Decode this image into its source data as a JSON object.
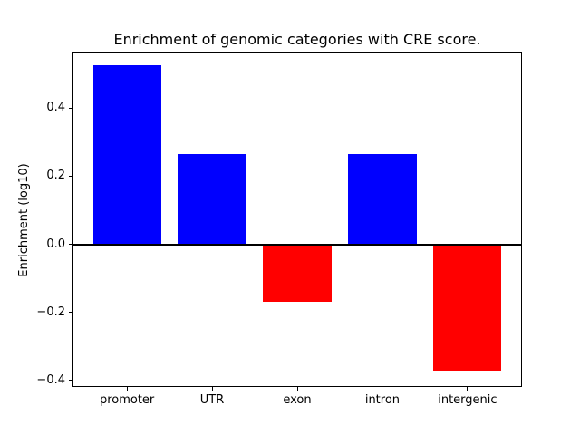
{
  "chart_data": {
    "type": "bar",
    "title": "Enrichment of genomic categories with CRE score.",
    "xlabel": "",
    "ylabel": "Enrichment (log10)",
    "categories": [
      "promoter",
      "UTR",
      "exon",
      "intron",
      "intergenic"
    ],
    "values": [
      0.525,
      0.264,
      -0.17,
      0.266,
      -0.37
    ],
    "bar_colors": [
      "#0000ff",
      "#0000ff",
      "#ff0000",
      "#0000ff",
      "#ff0000"
    ],
    "positive_color": "#0000ff",
    "negative_color": "#ff0000",
    "axis_color": "#000000",
    "yticks": [
      0.4,
      0.2,
      0.0,
      -0.2,
      -0.4
    ],
    "ytick_labels": [
      "0.4",
      "0.2",
      "0.0",
      "−0.2",
      "−0.4"
    ],
    "ylim": [
      -0.419,
      0.566
    ],
    "xlim": [
      -0.64,
      4.64
    ],
    "bar_width": 0.8,
    "zero_line": true,
    "grid": false,
    "legend": null
  }
}
